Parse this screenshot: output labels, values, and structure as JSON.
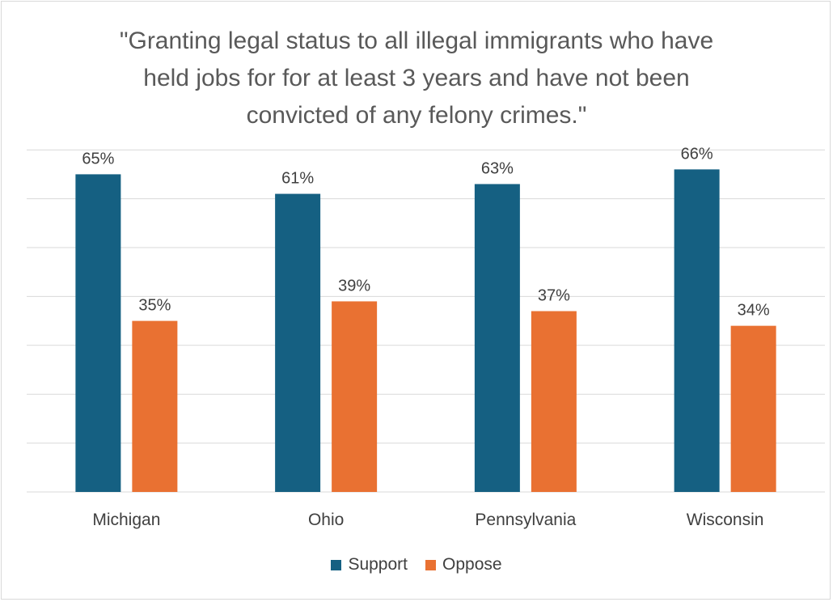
{
  "chart_data": {
    "type": "bar",
    "title_lines": [
      "\"Granting legal status to all illegal immigrants who have",
      "held jobs for for at least 3 years and have not been",
      "convicted of any felony crimes.\""
    ],
    "categories": [
      "Michigan",
      "Ohio",
      "Pennsylvania",
      "Wisconsin"
    ],
    "series": [
      {
        "name": "Support",
        "color": "#156082",
        "values": [
          65,
          61,
          63,
          66
        ],
        "labels": [
          "65%",
          "61%",
          "63%",
          "66%"
        ]
      },
      {
        "name": "Oppose",
        "color": "#E97132",
        "values": [
          35,
          39,
          37,
          34
        ],
        "labels": [
          "35%",
          "39%",
          "37%",
          "34%"
        ]
      }
    ],
    "ylim": [
      0,
      70
    ],
    "gridlines": true,
    "legend_position": "bottom",
    "data_labels": true
  }
}
